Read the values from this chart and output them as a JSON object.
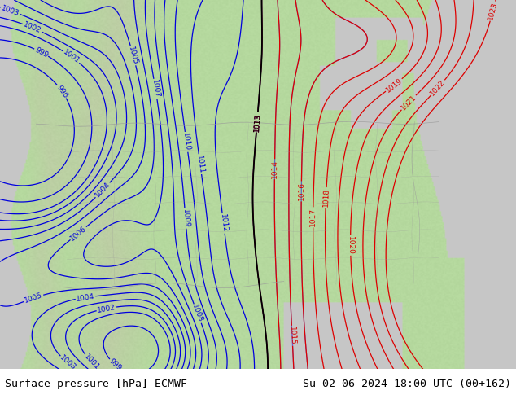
{
  "title_left": "Surface pressure [hPa] ECMWF",
  "title_right": "Su 02-06-2024 18:00 UTC (00+162)",
  "title_fontsize": 9.5,
  "land_color_rgb": [
    0.71,
    0.85,
    0.62
  ],
  "ocean_color_rgb": [
    0.78,
    0.78,
    0.78
  ],
  "blue_isobar_color": "#0000dd",
  "red_isobar_color": "#dd0000",
  "black_isobar_color": "#000000",
  "label_fontsize": 6.5,
  "fig_width": 6.34,
  "fig_height": 4.9,
  "dpi": 100,
  "border_color": "#999999",
  "pressure_levels": [
    996,
    999,
    1001,
    1002,
    1003,
    1004,
    1005,
    1006,
    1007,
    1008,
    1009,
    1010,
    1011,
    1012,
    1013,
    1014,
    1015,
    1016,
    1017,
    1018,
    1019,
    1020,
    1021,
    1022,
    1023
  ]
}
